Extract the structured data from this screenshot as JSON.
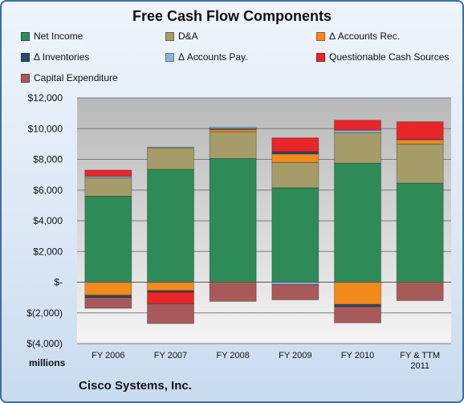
{
  "title": "Free Cash Flow Components",
  "company": "Cisco Systems, Inc.",
  "units_label": "millions",
  "chart_data": {
    "type": "bar",
    "stacked": true,
    "title": "Free Cash Flow Components",
    "ylim": [
      -4000,
      12000
    ],
    "y_ticks": [
      12000,
      10000,
      8000,
      6000,
      4000,
      2000,
      0,
      -2000,
      -4000
    ],
    "y_tick_labels": [
      "$12,000",
      "$10,000",
      "$8,000",
      "$6,000",
      "$4,000",
      "$2,000",
      "$-",
      "$(2,000)",
      "$(4,000)"
    ],
    "categories": [
      [
        "FY 2006"
      ],
      [
        "FY 2007"
      ],
      [
        "FY 2008"
      ],
      [
        "FY 2009"
      ],
      [
        "FY 2010"
      ],
      [
        "FY & TTM",
        "2011"
      ]
    ],
    "grid": true,
    "legend_position": "top",
    "series": [
      {
        "name": "Net Income",
        "color": "#2e8b57",
        "values": [
          5600,
          7350,
          8050,
          6150,
          7750,
          6450
        ]
      },
      {
        "name": "D&A",
        "color": "#a59c6a",
        "values": [
          1200,
          1400,
          1750,
          1650,
          2000,
          2550
        ]
      },
      {
        "name": "Δ Accounts Rec.",
        "color": "#f28a1c",
        "values": [
          -850,
          -550,
          150,
          550,
          -1450,
          250
        ]
      },
      {
        "name": "Δ Inventories",
        "color": "#2c4a6e",
        "values": [
          -150,
          -100,
          50,
          150,
          -150,
          0
        ]
      },
      {
        "name": "Δ Accounts Pay.",
        "color": "#8fb3d9",
        "values": [
          100,
          50,
          100,
          -150,
          150,
          50
        ]
      },
      {
        "name": "Questionable Cash Sources",
        "color": "#e8262a",
        "values": [
          400,
          -750,
          0,
          900,
          650,
          1150
        ]
      },
      {
        "name": "Capital Expenditure",
        "color": "#a85a5a",
        "values": [
          -700,
          -1300,
          -1250,
          -1000,
          -1050,
          -1200
        ]
      }
    ]
  }
}
